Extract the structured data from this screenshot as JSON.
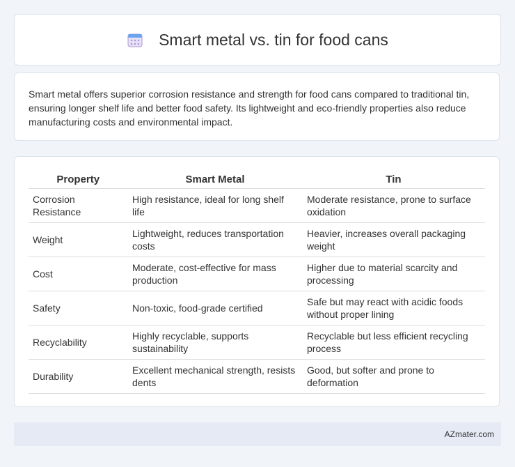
{
  "header": {
    "title": "Smart metal vs. tin for food cans"
  },
  "intro": "Smart metal offers superior corrosion resistance and strength for food cans compared to traditional tin, ensuring longer shelf life and better food safety. Its lightweight and eco-friendly properties also reduce manufacturing costs and environmental impact.",
  "table": {
    "columns": [
      "Property",
      "Smart Metal",
      "Tin"
    ],
    "rows": [
      [
        "Corrosion Resistance",
        "High resistance, ideal for long shelf life",
        "Moderate resistance, prone to surface oxidation"
      ],
      [
        "Weight",
        "Lightweight, reduces transportation costs",
        "Heavier, increases overall packaging weight"
      ],
      [
        "Cost",
        "Moderate, cost-effective for mass production",
        "Higher due to material scarcity and processing"
      ],
      [
        "Safety",
        "Non-toxic, food-grade certified",
        "Safe but may react with acidic foods without proper lining"
      ],
      [
        "Recyclability",
        "Highly recyclable, supports sustainability",
        "Recyclable but less efficient recycling process"
      ],
      [
        "Durability",
        "Excellent mechanical strength, resists dents",
        "Good, but softer and prone to deformation"
      ]
    ]
  },
  "footer": "AZmater.com"
}
